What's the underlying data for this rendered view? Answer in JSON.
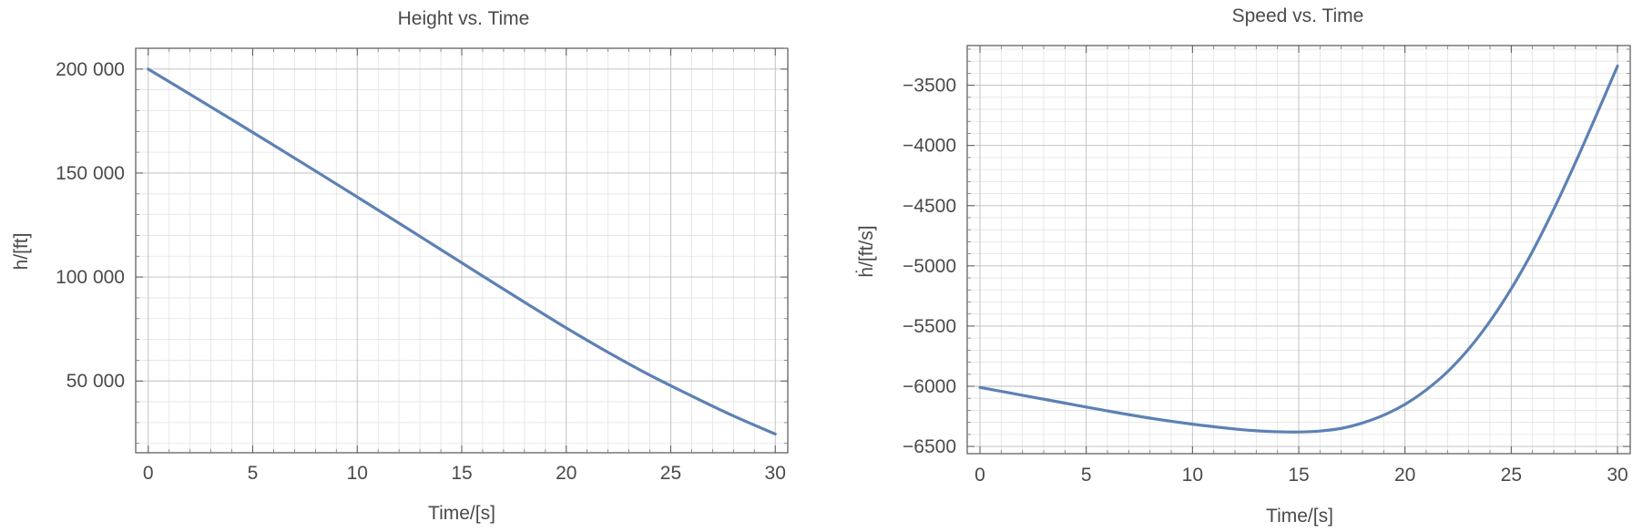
{
  "chart_data": [
    {
      "type": "line",
      "title": "Height vs. Time",
      "xlabel": "Time/[s]",
      "ylabel": "h/[ft]",
      "xlim": [
        -0.6,
        30.6
      ],
      "ylim": [
        15500,
        210000
      ],
      "x_ticks": [
        0,
        5,
        10,
        15,
        20,
        25,
        30
      ],
      "x_tick_labels": [
        "0",
        "5",
        "10",
        "15",
        "20",
        "25",
        "30"
      ],
      "x_minor_step": 1,
      "y_ticks": [
        50000,
        100000,
        150000,
        200000
      ],
      "y_tick_labels": [
        "50 000",
        "100 000",
        "150 000",
        "200 000"
      ],
      "y_minor_step": 10000,
      "grid": true,
      "color": "#5d81b4",
      "series": [
        {
          "x": [
            0,
            2,
            4,
            6,
            8,
            10,
            12,
            14,
            16,
            18,
            20,
            22,
            24,
            26,
            28,
            30
          ],
          "values": [
            200000,
            187900,
            175700,
            163400,
            151000,
            138500,
            125900,
            113200,
            100500,
            87900,
            75500,
            63800,
            52800,
            42800,
            33200,
            24500
          ]
        }
      ]
    },
    {
      "type": "line",
      "title": "Speed vs. Time",
      "xlabel": "Time/[s]",
      "ylabel": "ḣ/[ft/s]",
      "xlim": [
        -0.6,
        30.6
      ],
      "ylim": [
        -6560,
        -3170
      ],
      "x_ticks": [
        0,
        5,
        10,
        15,
        20,
        25,
        30
      ],
      "x_tick_labels": [
        "0",
        "5",
        "10",
        "15",
        "20",
        "25",
        "30"
      ],
      "x_minor_step": 1,
      "y_ticks": [
        -6500,
        -6000,
        -5500,
        -5000,
        -4500,
        -4000,
        -3500
      ],
      "y_tick_labels": [
        "−6500",
        "−6000",
        "−5500",
        "−5000",
        "−4500",
        "−4000",
        "−3500"
      ],
      "y_minor_step": 100,
      "grid": true,
      "color": "#5d81b4",
      "series": [
        {
          "x": [
            0,
            2,
            4,
            6,
            8,
            10,
            12,
            13,
            14,
            15,
            16,
            17,
            18,
            19,
            20,
            21,
            22,
            23,
            24,
            25,
            26,
            27,
            28,
            29,
            30
          ],
          "values": [
            -6010,
            -6075,
            -6140,
            -6205,
            -6265,
            -6315,
            -6355,
            -6370,
            -6378,
            -6380,
            -6372,
            -6350,
            -6305,
            -6240,
            -6150,
            -6030,
            -5880,
            -5690,
            -5460,
            -5190,
            -4880,
            -4530,
            -4150,
            -3750,
            -3340
          ]
        }
      ]
    }
  ]
}
